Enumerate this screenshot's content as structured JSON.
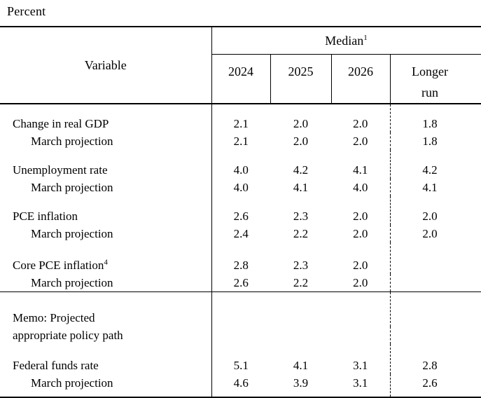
{
  "page": {
    "unit_label": "Percent"
  },
  "table": {
    "header": {
      "variable": "Variable",
      "median": "Median",
      "median_sup": "1",
      "years": [
        "2024",
        "2025",
        "2026"
      ],
      "longer_run_line1": "Longer",
      "longer_run_line2": "run"
    },
    "rows": [
      {
        "label": "Change in real GDP",
        "sup": "",
        "y2024": "2.1",
        "y2025": "2.0",
        "y2026": "2.0",
        "longer_run": "1.8"
      },
      {
        "label": "March projection",
        "sup": "",
        "y2024": "2.1",
        "y2025": "2.0",
        "y2026": "2.0",
        "longer_run": "1.8"
      },
      {
        "label": "Unemployment rate",
        "sup": "",
        "y2024": "4.0",
        "y2025": "4.2",
        "y2026": "4.1",
        "longer_run": "4.2"
      },
      {
        "label": "March projection",
        "sup": "",
        "y2024": "4.0",
        "y2025": "4.1",
        "y2026": "4.0",
        "longer_run": "4.1"
      },
      {
        "label": "PCE inflation",
        "sup": "",
        "y2024": "2.6",
        "y2025": "2.3",
        "y2026": "2.0",
        "longer_run": "2.0"
      },
      {
        "label": "March projection",
        "sup": "",
        "y2024": "2.4",
        "y2025": "2.2",
        "y2026": "2.0",
        "longer_run": "2.0"
      },
      {
        "label": "Core PCE inflation",
        "sup": "4",
        "y2024": "2.8",
        "y2025": "2.3",
        "y2026": "2.0",
        "longer_run": ""
      },
      {
        "label": "March projection",
        "sup": "",
        "y2024": "2.6",
        "y2025": "2.2",
        "y2026": "2.0",
        "longer_run": ""
      }
    ],
    "memo": {
      "line1": "Memo: Projected",
      "line2": "appropriate policy path"
    },
    "policy_rows": [
      {
        "label": "Federal funds rate",
        "sup": "",
        "y2024": "5.1",
        "y2025": "4.1",
        "y2026": "3.1",
        "longer_run": "2.8"
      },
      {
        "label": "March projection",
        "sup": "",
        "y2024": "4.6",
        "y2025": "3.9",
        "y2026": "3.1",
        "longer_run": "2.6"
      }
    ]
  },
  "chart_data": {
    "type": "table",
    "title": "Percent",
    "columns": [
      "Variable",
      "2024",
      "2025",
      "2026",
      "Longer run"
    ],
    "rows": [
      [
        "Change in real GDP",
        2.1,
        2.0,
        2.0,
        1.8
      ],
      [
        "March projection",
        2.1,
        2.0,
        2.0,
        1.8
      ],
      [
        "Unemployment rate",
        4.0,
        4.2,
        4.1,
        4.2
      ],
      [
        "March projection",
        4.0,
        4.1,
        4.0,
        4.1
      ],
      [
        "PCE inflation",
        2.6,
        2.3,
        2.0,
        2.0
      ],
      [
        "March projection",
        2.4,
        2.2,
        2.0,
        2.0
      ],
      [
        "Core PCE inflation",
        2.8,
        2.3,
        2.0,
        null
      ],
      [
        "March projection",
        2.6,
        2.2,
        2.0,
        null
      ],
      [
        "Federal funds rate",
        5.1,
        4.1,
        3.1,
        2.8
      ],
      [
        "March projection",
        4.6,
        3.9,
        3.1,
        2.6
      ]
    ]
  }
}
